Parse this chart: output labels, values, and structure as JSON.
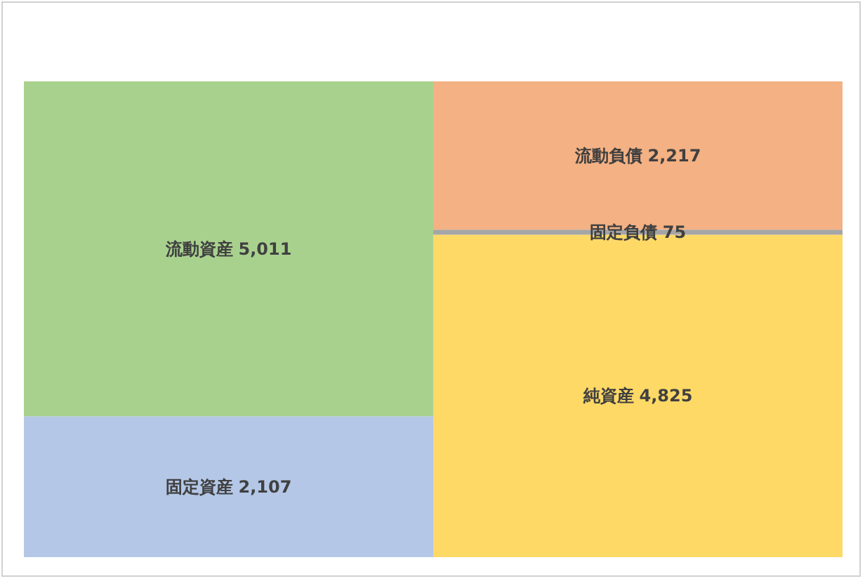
{
  "chart_data": {
    "type": "bar",
    "stacked": true,
    "categories": [
      null,
      null
    ],
    "tick_labels": false,
    "series": [
      {
        "name": "固定資産",
        "color": "#b4c7e7",
        "values": [
          2107,
          null
        ],
        "value_labels": [
          "2,107",
          null
        ]
      },
      {
        "name": "流動資産",
        "color": "#a9d18e",
        "values": [
          5011,
          null
        ],
        "value_labels": [
          "5,011",
          null
        ]
      },
      {
        "name": "純資産",
        "color": "#ffd966",
        "values": [
          null,
          4825
        ],
        "value_labels": [
          null,
          "4,825"
        ]
      },
      {
        "name": "固定負債",
        "color": "#a5a5a5",
        "values": [
          null,
          75
        ],
        "value_labels": [
          null,
          "75"
        ]
      },
      {
        "name": "流動負債",
        "color": "#f4b183",
        "values": [
          null,
          2217
        ],
        "value_labels": [
          null,
          "2,217"
        ]
      }
    ]
  }
}
